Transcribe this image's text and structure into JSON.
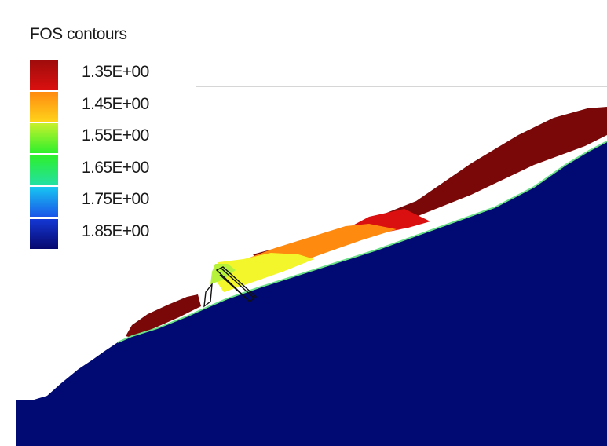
{
  "legend": {
    "title": "FOS contours",
    "labels": [
      "1.35E+00",
      "1.45E+00",
      "1.55E+00",
      "1.65E+00",
      "1.75E+00",
      "1.85E+00"
    ],
    "colors": [
      "#d9100f",
      "#ff8a10",
      "#c8f02c",
      "#2ef02c",
      "#18c6f2",
      "#0d1f9e"
    ],
    "swatch_segments": [
      [
        "#9e0c0c",
        "#d9100f"
      ],
      [
        "#ff8a10",
        "#ffd31a"
      ],
      [
        "#c8f02c",
        "#2ef02c"
      ],
      [
        "#2ef02c",
        "#22e0a4"
      ],
      [
        "#18c6f2",
        "#1a55e8"
      ],
      [
        "#1438d4",
        "#07086e"
      ]
    ]
  },
  "palette": {
    "background": "#ffffff",
    "bedrock": "#010a72",
    "highest_fos": "#7a0808",
    "lowest_fos": "#d9100f",
    "mid_orange": "#ff8a10",
    "mid_yellow": "#f2f62a",
    "mid_green": "#b6f23c",
    "structure_outline": "#111111"
  }
}
